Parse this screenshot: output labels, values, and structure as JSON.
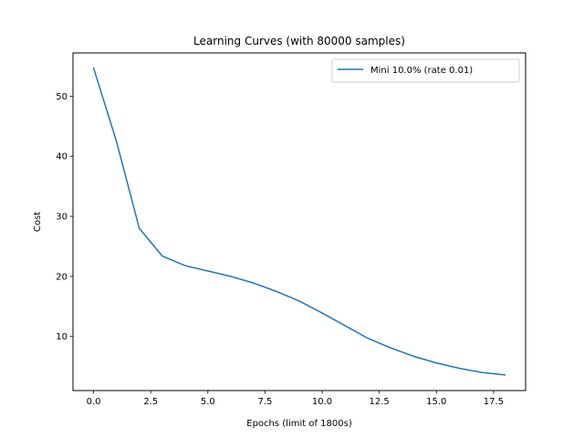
{
  "chart_data": {
    "type": "line",
    "title": "Learning Curves (with 80000 samples)",
    "xlabel": "Epochs (limit of 1800s)",
    "ylabel": "Cost",
    "xlim": [
      -0.9,
      18.9
    ],
    "ylim": [
      1.0,
      57.2
    ],
    "xticks": [
      0.0,
      2.5,
      5.0,
      7.5,
      10.0,
      12.5,
      15.0,
      17.5
    ],
    "xtick_labels": [
      "0.0",
      "2.5",
      "5.0",
      "7.5",
      "10.0",
      "12.5",
      "15.0",
      "17.5"
    ],
    "yticks": [
      10,
      20,
      30,
      40,
      50
    ],
    "ytick_labels": [
      "10",
      "20",
      "30",
      "40",
      "50"
    ],
    "grid": false,
    "legend": "top-right",
    "series": [
      {
        "name": "Mini 10.0% (rate 0.01)",
        "color": "#1f77b4",
        "x": [
          0,
          1,
          2,
          3,
          4,
          5,
          6,
          7,
          8,
          9,
          10,
          11,
          12,
          13,
          14,
          15,
          16,
          17,
          18
        ],
        "y": [
          54.7,
          42.5,
          28.0,
          23.4,
          21.8,
          20.9,
          20.0,
          18.9,
          17.5,
          15.9,
          13.9,
          11.8,
          9.7,
          8.1,
          6.7,
          5.6,
          4.7,
          4.0,
          3.6
        ]
      }
    ]
  }
}
